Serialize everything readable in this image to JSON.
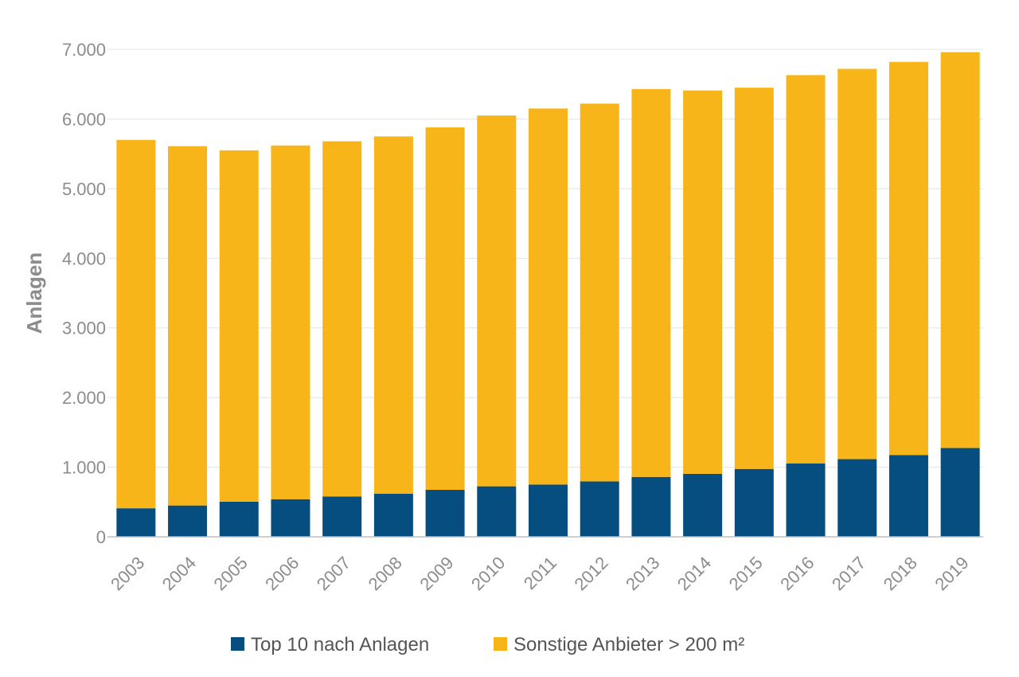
{
  "chart_data": {
    "type": "bar",
    "stacked": true,
    "title": "",
    "xlabel": "",
    "ylabel": "Anlagen",
    "ylim": [
      0,
      7000
    ],
    "yticks": [
      0,
      1000,
      2000,
      3000,
      4000,
      5000,
      6000,
      7000
    ],
    "ytick_labels": [
      "0",
      "1.000",
      "2.000",
      "3.000",
      "4.000",
      "5.000",
      "6.000",
      "7.000"
    ],
    "grid": true,
    "legend_position": "bottom",
    "categories": [
      "2003",
      "2004",
      "2005",
      "2006",
      "2007",
      "2008",
      "2009",
      "2010",
      "2011",
      "2012",
      "2013",
      "2014",
      "2015",
      "2016",
      "2017",
      "2018",
      "2019"
    ],
    "series": [
      {
        "name": "Top 10 nach Anlagen",
        "color": "#064d80",
        "values": [
          410,
          450,
          505,
          540,
          580,
          620,
          675,
          725,
          750,
          795,
          860,
          905,
          975,
          1055,
          1115,
          1175,
          1275
        ]
      },
      {
        "name": "Sonstige Anbieter > 200 m²",
        "color": "#f7b519",
        "values": [
          5290,
          5160,
          5045,
          5080,
          5100,
          5130,
          5205,
          5325,
          5400,
          5425,
          5570,
          5505,
          5475,
          5575,
          5605,
          5645,
          5685
        ]
      }
    ]
  }
}
